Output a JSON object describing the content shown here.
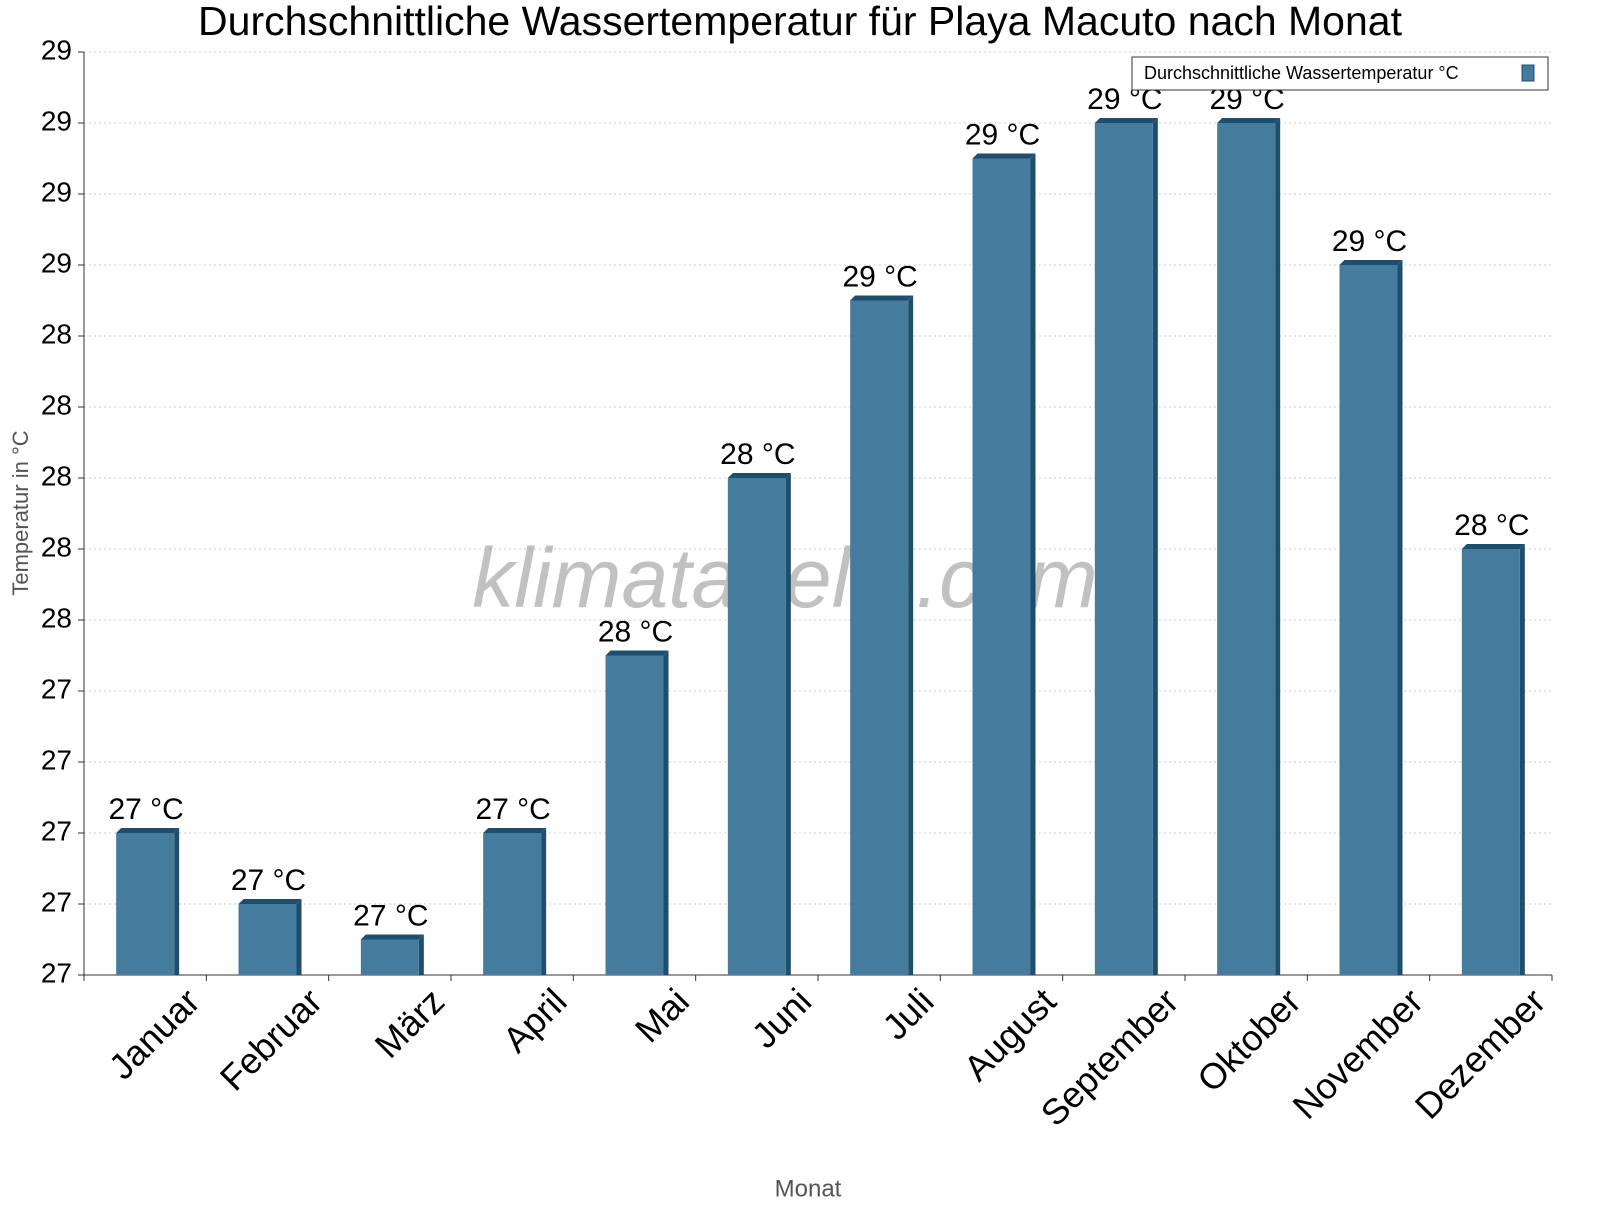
{
  "chart_data": {
    "type": "bar",
    "title": "Durchschnittliche Wassertemperatur für Playa Macuto nach Monat",
    "xlabel": "Monat",
    "ylabel": "Temperatur in °C",
    "watermark": "klimatabelle.com",
    "categories": [
      "Januar",
      "Februar",
      "März",
      "April",
      "Mai",
      "Juni",
      "Juli",
      "August",
      "September",
      "Oktober",
      "November",
      "Dezember"
    ],
    "series": [
      {
        "name": "Durchschnittliche Wassertemperatur °C",
        "color": "#457b9d",
        "values": [
          27.0,
          26.8,
          26.7,
          27.0,
          27.5,
          28.0,
          28.5,
          28.9,
          29.0,
          29.0,
          28.6,
          27.8
        ],
        "value_labels": [
          "27 °C",
          "27 °C",
          "27 °C",
          "27 °C",
          "28 °C",
          "28 °C",
          "29 °C",
          "29 °C",
          "29 °C",
          "29 °C",
          "29 °C",
          "28 °C"
        ]
      }
    ],
    "ylim": [
      26.6,
      29.2
    ],
    "yticks": [
      {
        "value": 26.6,
        "label": "27"
      },
      {
        "value": 26.8,
        "label": "27"
      },
      {
        "value": 27.0,
        "label": "27"
      },
      {
        "value": 27.2,
        "label": "27"
      },
      {
        "value": 27.4,
        "label": "27"
      },
      {
        "value": 27.6,
        "label": "28"
      },
      {
        "value": 27.8,
        "label": "28"
      },
      {
        "value": 28.0,
        "label": "28"
      },
      {
        "value": 28.2,
        "label": "28"
      },
      {
        "value": 28.4,
        "label": "28"
      },
      {
        "value": 28.6,
        "label": "29"
      },
      {
        "value": 28.8,
        "label": "29"
      },
      {
        "value": 29.0,
        "label": "29"
      },
      {
        "value": 29.2,
        "label": "29"
      }
    ],
    "grid": true,
    "legend": "upper right"
  }
}
